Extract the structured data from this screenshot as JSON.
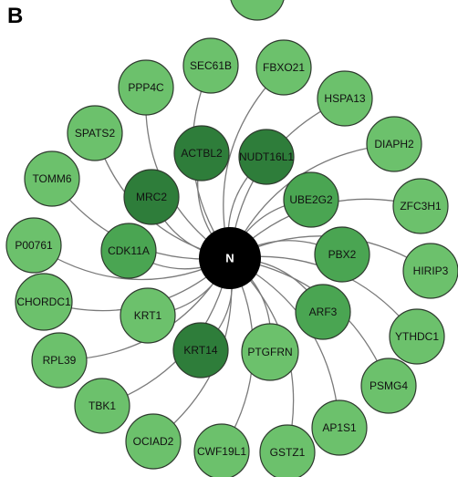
{
  "panel_label": "B",
  "hub": {
    "label": "N",
    "color": "#000000"
  },
  "colors": {
    "light": "#6cc16c",
    "medium": "#4aa552",
    "dark": "#2e7d3a"
  },
  "nodes": [
    {
      "id": "sec61b",
      "label": "SEC61B",
      "shade": "light"
    },
    {
      "id": "fbxo21",
      "label": "FBXO21",
      "shade": "light"
    },
    {
      "id": "ppp4c",
      "label": "PPP4C",
      "shade": "light"
    },
    {
      "id": "hspa13",
      "label": "HSPA13",
      "shade": "light"
    },
    {
      "id": "spats2",
      "label": "SPATS2",
      "shade": "light"
    },
    {
      "id": "diaph2",
      "label": "DIAPH2",
      "shade": "light"
    },
    {
      "id": "actbl2",
      "label": "ACTBL2",
      "shade": "dark"
    },
    {
      "id": "nudt16l1",
      "label": "NUDT16L1",
      "shade": "dark"
    },
    {
      "id": "tomm6",
      "label": "TOMM6",
      "shade": "light"
    },
    {
      "id": "mrc2",
      "label": "MRC2",
      "shade": "dark"
    },
    {
      "id": "ube2g2",
      "label": "UBE2G2",
      "shade": "medium"
    },
    {
      "id": "zfc3h1",
      "label": "ZFC3H1",
      "shade": "light"
    },
    {
      "id": "p00761",
      "label": "P00761",
      "shade": "light"
    },
    {
      "id": "cdk11a",
      "label": "CDK11A",
      "shade": "medium"
    },
    {
      "id": "pbx2",
      "label": "PBX2",
      "shade": "medium"
    },
    {
      "id": "hirip3",
      "label": "HIRIP3",
      "shade": "light"
    },
    {
      "id": "chordc1",
      "label": "CHORDC1",
      "shade": "light"
    },
    {
      "id": "krt1",
      "label": "KRT1",
      "shade": "light"
    },
    {
      "id": "arf3",
      "label": "ARF3",
      "shade": "medium"
    },
    {
      "id": "ythdc1",
      "label": "YTHDC1",
      "shade": "light"
    },
    {
      "id": "rpl39",
      "label": "RPL39",
      "shade": "light"
    },
    {
      "id": "krt14",
      "label": "KRT14",
      "shade": "dark"
    },
    {
      "id": "ptgfrn",
      "label": "PTGFRN",
      "shade": "light"
    },
    {
      "id": "psmg4",
      "label": "PSMG4",
      "shade": "light"
    },
    {
      "id": "tbk1",
      "label": "TBK1",
      "shade": "light"
    },
    {
      "id": "ap1s1",
      "label": "AP1S1",
      "shade": "light"
    },
    {
      "id": "ociad2",
      "label": "OCIAD2",
      "shade": "light"
    },
    {
      "id": "cwf19l1",
      "label": "CWF19L1",
      "shade": "light"
    },
    {
      "id": "gstz1",
      "label": "GSTZ1",
      "shade": "light"
    }
  ]
}
